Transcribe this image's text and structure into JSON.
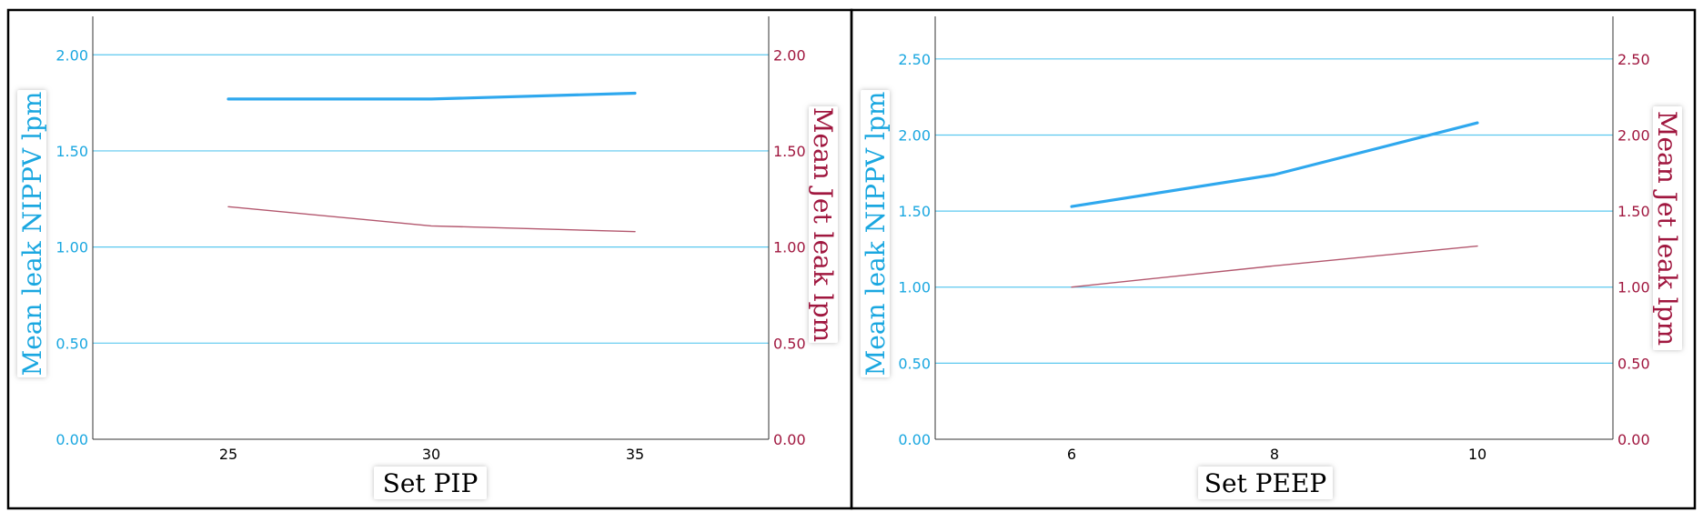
{
  "colors": {
    "left_axis": "#1aa7e0",
    "right_axis": "#a0173f",
    "nippv_line": "#2fa8ee",
    "jet_line": "#b3576e",
    "grid": "#5bc8ef"
  },
  "chart_data": [
    {
      "type": "line",
      "xlabel": "Set PIP",
      "ylabel_left": "Mean leak NIPPV lpm",
      "ylabel_right": "Mean Jet leak lpm",
      "categories": [
        "25",
        "30",
        "35"
      ],
      "yticks_left": [
        "0.00",
        "0.50",
        "1.00",
        "1.50",
        "2.00"
      ],
      "yticks_right": [
        "0.00",
        "0.50",
        "1.00",
        "1.50",
        "2.00"
      ],
      "ylim_left": [
        0,
        2.2
      ],
      "ylim_right": [
        0,
        2.2
      ],
      "grid": true,
      "series": [
        {
          "axis": "left",
          "values": [
            1.77,
            1.77,
            1.8
          ]
        },
        {
          "axis": "right",
          "values": [
            1.21,
            1.11,
            1.08
          ]
        }
      ]
    },
    {
      "type": "line",
      "xlabel": "Set PEEP",
      "ylabel_left": "Mean leak NIPPV lpm",
      "ylabel_right": "Mean Jet leak lpm",
      "categories": [
        "6",
        "8",
        "10"
      ],
      "yticks_left": [
        "0.00",
        "0.50",
        "1.00",
        "1.50",
        "2.00",
        "2.50"
      ],
      "yticks_right": [
        "0.00",
        "0.50",
        "1.00",
        "1.50",
        "2.00",
        "2.50"
      ],
      "ylim_left": [
        0,
        2.78
      ],
      "ylim_right": [
        0,
        2.78
      ],
      "grid": true,
      "series": [
        {
          "axis": "left",
          "values": [
            1.53,
            1.74,
            2.08
          ]
        },
        {
          "axis": "right",
          "values": [
            1.0,
            1.14,
            1.27
          ]
        }
      ]
    }
  ]
}
